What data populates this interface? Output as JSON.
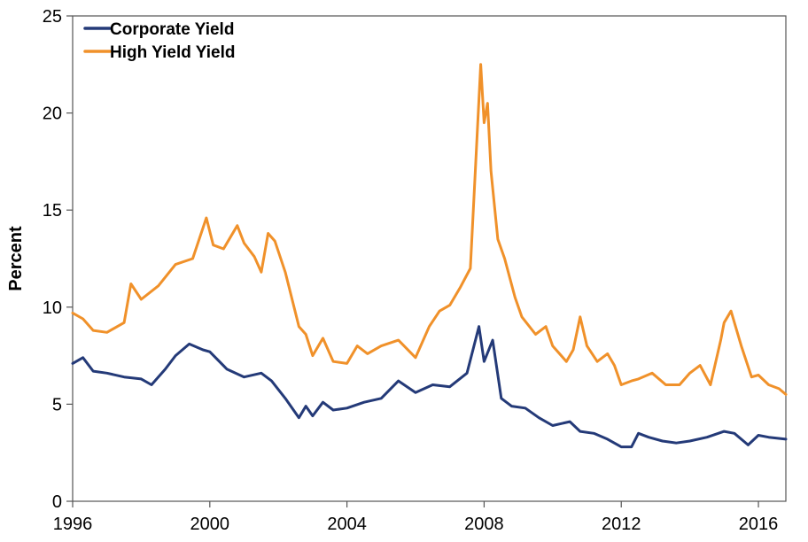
{
  "chart_data": {
    "type": "line",
    "xlabel": "",
    "ylabel": "Percent",
    "xlim": [
      1996,
      2016.8
    ],
    "ylim": [
      0,
      25
    ],
    "x_ticks": [
      "1996",
      "2000",
      "2004",
      "2008",
      "2012",
      "2016"
    ],
    "y_ticks": [
      "0",
      "5",
      "10",
      "15",
      "20",
      "25"
    ],
    "grid": false,
    "legend_position": "top-left",
    "series": [
      {
        "name": "Corporate Yield",
        "color": "#243a78",
        "x": [
          1996.0,
          1996.3,
          1996.6,
          1997.0,
          1997.5,
          1998.0,
          1998.3,
          1998.7,
          1999.0,
          1999.4,
          1999.8,
          2000.0,
          2000.5,
          2001.0,
          2001.5,
          2001.8,
          2002.2,
          2002.6,
          2002.8,
          2003.0,
          2003.3,
          2003.6,
          2004.0,
          2004.5,
          2005.0,
          2005.5,
          2006.0,
          2006.5,
          2007.0,
          2007.5,
          2007.85,
          2008.0,
          2008.25,
          2008.5,
          2008.8,
          2009.2,
          2009.6,
          2010.0,
          2010.5,
          2010.8,
          2011.2,
          2011.6,
          2012.0,
          2012.3,
          2012.5,
          2012.8,
          2013.2,
          2013.6,
          2014.0,
          2014.5,
          2015.0,
          2015.3,
          2015.7,
          2016.0,
          2016.3,
          2016.8
        ],
        "values": [
          7.1,
          7.4,
          6.7,
          6.6,
          6.4,
          6.3,
          6.0,
          6.8,
          7.5,
          8.1,
          7.8,
          7.7,
          6.8,
          6.4,
          6.6,
          6.2,
          5.3,
          4.3,
          4.9,
          4.4,
          5.1,
          4.7,
          4.8,
          5.1,
          5.3,
          6.2,
          5.6,
          6.0,
          5.9,
          6.6,
          9.0,
          7.2,
          8.3,
          5.3,
          4.9,
          4.8,
          4.3,
          3.9,
          4.1,
          3.6,
          3.5,
          3.2,
          2.8,
          2.8,
          3.5,
          3.3,
          3.1,
          3.0,
          3.1,
          3.3,
          3.6,
          3.5,
          2.9,
          3.4,
          3.3,
          3.2
        ]
      },
      {
        "name": "High Yield Yield",
        "color": "#f0912a",
        "x": [
          1996.0,
          1996.3,
          1996.6,
          1997.0,
          1997.5,
          1997.7,
          1998.0,
          1998.5,
          1999.0,
          1999.5,
          1999.9,
          2000.1,
          2000.4,
          2000.8,
          2001.0,
          2001.3,
          2001.5,
          2001.7,
          2001.9,
          2002.2,
          2002.6,
          2002.8,
          2003.0,
          2003.3,
          2003.6,
          2004.0,
          2004.3,
          2004.6,
          2005.0,
          2005.5,
          2006.0,
          2006.4,
          2006.7,
          2007.0,
          2007.3,
          2007.6,
          2007.8,
          2007.9,
          2008.0,
          2008.1,
          2008.2,
          2008.4,
          2008.6,
          2008.9,
          2009.1,
          2009.5,
          2009.8,
          2010.0,
          2010.4,
          2010.6,
          2010.8,
          2011.0,
          2011.3,
          2011.6,
          2011.8,
          2012.0,
          2012.3,
          2012.5,
          2012.9,
          2013.3,
          2013.7,
          2014.0,
          2014.3,
          2014.6,
          2014.9,
          2015.0,
          2015.2,
          2015.5,
          2015.8,
          2016.0,
          2016.3,
          2016.6,
          2016.8
        ],
        "values": [
          9.7,
          9.4,
          8.8,
          8.7,
          9.2,
          11.2,
          10.4,
          11.1,
          12.2,
          12.5,
          14.6,
          13.2,
          13.0,
          14.2,
          13.3,
          12.6,
          11.8,
          13.8,
          13.4,
          11.8,
          9.0,
          8.6,
          7.5,
          8.4,
          7.2,
          7.1,
          8.0,
          7.6,
          8.0,
          8.3,
          7.4,
          9.0,
          9.8,
          10.1,
          11.0,
          12.0,
          19.0,
          22.5,
          19.5,
          20.5,
          17.0,
          13.5,
          12.5,
          10.5,
          9.5,
          8.6,
          9.0,
          8.0,
          7.2,
          7.8,
          9.5,
          8.0,
          7.2,
          7.6,
          7.0,
          6.0,
          6.2,
          6.3,
          6.6,
          6.0,
          6.0,
          6.6,
          7.0,
          6.0,
          8.3,
          9.2,
          9.8,
          8.0,
          6.4,
          6.5,
          6.0,
          5.8,
          5.5
        ]
      }
    ]
  }
}
